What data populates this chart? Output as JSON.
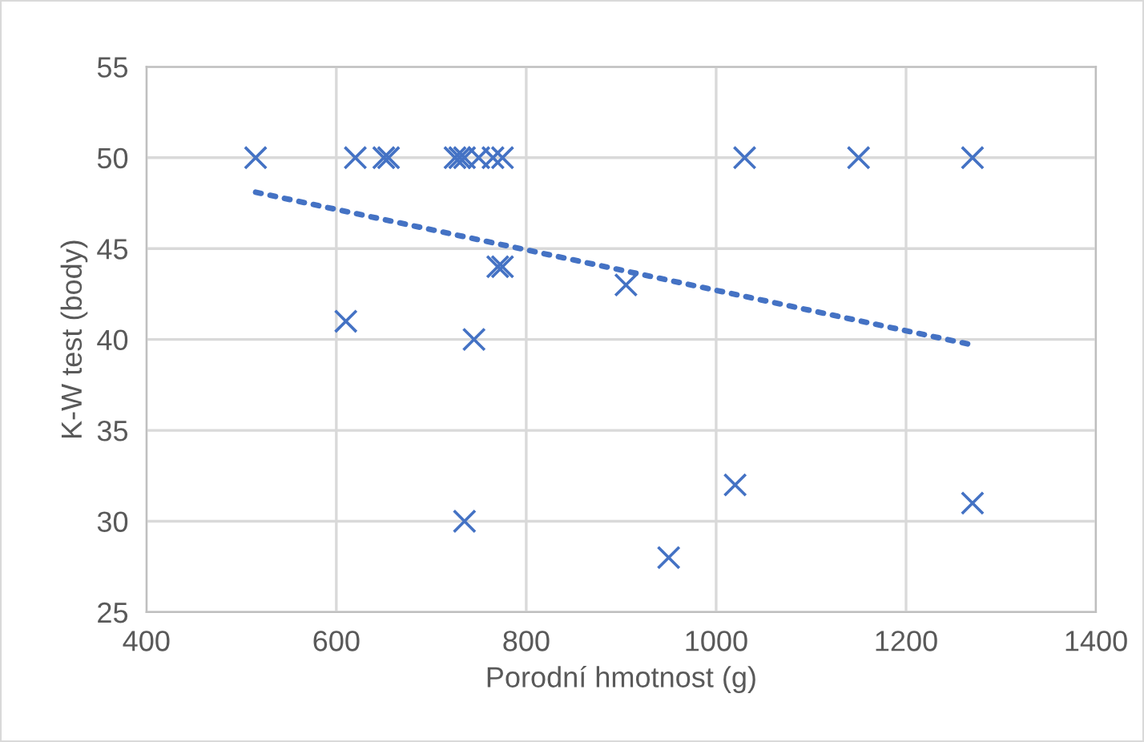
{
  "chart_data": {
    "type": "scatter",
    "xlabel": "Porodní hmotnost (g)",
    "ylabel": "K-W test (body)",
    "xlim": [
      400,
      1400
    ],
    "xticks": [
      400,
      600,
      800,
      1000,
      1200,
      1400
    ],
    "ylim": [
      25,
      55
    ],
    "yticks": [
      25,
      30,
      35,
      40,
      45,
      50,
      55
    ],
    "grid": true,
    "marker": "cross",
    "legend": false,
    "series": [
      {
        "color": "#4472c4",
        "x": [
          515,
          620,
          650,
          655,
          725,
          730,
          735,
          750,
          765,
          775,
          1030,
          1150,
          1270,
          770,
          775,
          905,
          610,
          745,
          735,
          950,
          1020,
          1270
        ],
        "values": [
          50,
          50,
          50,
          50,
          50,
          50,
          50,
          50,
          50,
          50,
          50,
          50,
          50,
          44,
          44,
          43,
          41,
          40,
          30,
          28,
          32,
          31
        ]
      },
      {
        "type": "line",
        "color": "#4472c4",
        "line_style": "dotted",
        "marker": "none",
        "x": [
          515,
          1270
        ],
        "values": [
          48.1,
          39.7
        ]
      }
    ]
  }
}
